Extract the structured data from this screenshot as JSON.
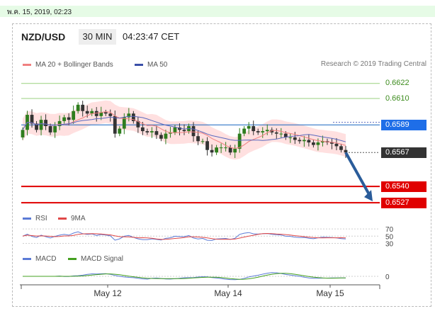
{
  "datestamp": "พ.ค. 15, 2019, 02:23",
  "header": {
    "symbol": "NZD/USD",
    "timeframe": "30 MIN",
    "time": "04:23:47 CET"
  },
  "legend": {
    "ma20": "MA 20 + Bollinger Bands",
    "ma50": "MA 50",
    "credit": "Research © 2019 Trading Central"
  },
  "rsi_legend": {
    "rsi": "RSI",
    "ma": "9MA"
  },
  "macd_legend": {
    "macd": "MACD",
    "signal": "MACD Signal"
  },
  "colors": {
    "candle_up": "#2e7d1e",
    "candle_down": "#333333",
    "bb_fill": "#ffd6d6",
    "ma20": "#f08080",
    "ma50": "#5a6abf",
    "target": "#e00000",
    "pivot_line": "#1565c0",
    "arrow": "#2a5c9a",
    "rsi": "#5b7bd6",
    "rsi_ma": "#e04848",
    "macd": "#5b7bd6",
    "macd_signal": "#44a020"
  },
  "chart_data": {
    "type": "candlestick",
    "x_ticks": [
      "May 12",
      "May 14",
      "May 15"
    ],
    "price_levels": [
      {
        "value": "0.6622",
        "kind": "resistance"
      },
      {
        "value": "0.6610",
        "kind": "resistance"
      },
      {
        "value": "0.6589",
        "kind": "pivot"
      },
      {
        "value": "0.6567",
        "kind": "current"
      },
      {
        "value": "0.6540",
        "kind": "target"
      },
      {
        "value": "0.6527",
        "kind": "target"
      }
    ],
    "price_range": [
      0.6522,
      0.6632
    ],
    "close_series": [
      0.6585,
      0.6597,
      0.659,
      0.6585,
      0.6593,
      0.6588,
      0.6583,
      0.6588,
      0.6592,
      0.6595,
      0.6593,
      0.66,
      0.6605,
      0.66,
      0.6598,
      0.66,
      0.6596,
      0.6599,
      0.6598,
      0.6596,
      0.6582,
      0.6586,
      0.6595,
      0.6598,
      0.6592,
      0.6587,
      0.6584,
      0.6583,
      0.6584,
      0.6581,
      0.6578,
      0.6582,
      0.6583,
      0.6587,
      0.6585,
      0.6584,
      0.6588,
      0.658,
      0.6576,
      0.6576,
      0.6569,
      0.6567,
      0.6571,
      0.6571,
      0.6571,
      0.6567,
      0.657,
      0.6582,
      0.6586,
      0.6588,
      0.6584,
      0.6583,
      0.6584,
      0.6585,
      0.6583,
      0.6582,
      0.6582,
      0.6579,
      0.6579,
      0.6577,
      0.6576,
      0.6577,
      0.6575,
      0.6573,
      0.6575,
      0.6576,
      0.6575,
      0.6574,
      0.6572,
      0.6569,
      0.6567
    ],
    "rsi_levels": [
      "70",
      "50",
      "30"
    ],
    "macd_levels": [
      "0"
    ]
  }
}
